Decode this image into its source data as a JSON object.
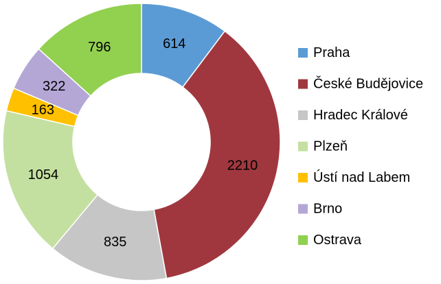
{
  "chart_data": {
    "type": "pie",
    "variant": "donut",
    "title": "",
    "legend_position": "right",
    "slices": [
      {
        "label": "Praha",
        "value": 614,
        "color": "#5b9bd5"
      },
      {
        "label": "České Budějovice",
        "value": 2210,
        "color": "#a0373f"
      },
      {
        "label": "Hradec Králové",
        "value": 835,
        "color": "#c6c6c6"
      },
      {
        "label": "Plzeň",
        "value": 1054,
        "color": "#c4e0a0"
      },
      {
        "label": "Ústí nad Labem",
        "value": 163,
        "color": "#ffc000"
      },
      {
        "label": "Brno",
        "value": 322,
        "color": "#b4a7d6"
      },
      {
        "label": "Ostrava",
        "value": 796,
        "color": "#92d050"
      }
    ]
  }
}
